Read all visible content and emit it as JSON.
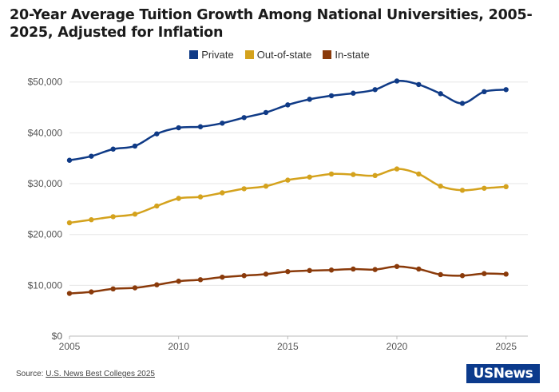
{
  "title": "20-Year Average Tuition Growth Among National Universities, 2005-2025, Adjusted for Inflation",
  "source_prefix": "Source: ",
  "source_link": "U.S. News Best Colleges 2025",
  "logo_text": "USNews",
  "chart_data": {
    "type": "line",
    "title": "20-Year Average Tuition Growth Among National Universities, 2005-2025, Adjusted for Inflation",
    "xlabel": "",
    "ylabel": "",
    "x": [
      2005,
      2006,
      2007,
      2008,
      2009,
      2010,
      2011,
      2012,
      2013,
      2014,
      2015,
      2016,
      2017,
      2018,
      2019,
      2020,
      2021,
      2022,
      2023,
      2024,
      2025
    ],
    "xlim": [
      2005,
      2026
    ],
    "ylim": [
      0,
      52000
    ],
    "x_ticks": [
      2005,
      2010,
      2015,
      2020,
      2025
    ],
    "y_ticks": [
      0,
      10000,
      20000,
      30000,
      40000,
      50000
    ],
    "y_tick_labels": [
      "$0",
      "$10,000",
      "$20,000",
      "$30,000",
      "$40,000",
      "$50,000"
    ],
    "grid": "horizontal",
    "legend_position": "top-center",
    "series": [
      {
        "name": "Private",
        "color": "#0f3a86",
        "values": [
          34600,
          35400,
          36800,
          37400,
          39800,
          41000,
          41200,
          41900,
          43000,
          44000,
          45500,
          46600,
          47300,
          47800,
          48500,
          50200,
          49500,
          47700,
          45800,
          48100,
          48500
        ]
      },
      {
        "name": "Out-of-state",
        "color": "#d4a21d",
        "values": [
          22300,
          22900,
          23500,
          24000,
          25600,
          27100,
          27400,
          28200,
          29000,
          29500,
          30700,
          31300,
          31900,
          31800,
          31600,
          32900,
          31900,
          29500,
          28700,
          29100,
          29400
        ]
      },
      {
        "name": "In-state",
        "color": "#8a3a0a",
        "values": [
          8400,
          8700,
          9300,
          9500,
          10100,
          10800,
          11100,
          11600,
          11900,
          12200,
          12700,
          12900,
          13000,
          13200,
          13100,
          13700,
          13200,
          12100,
          11900,
          12300,
          12200
        ]
      }
    ]
  }
}
